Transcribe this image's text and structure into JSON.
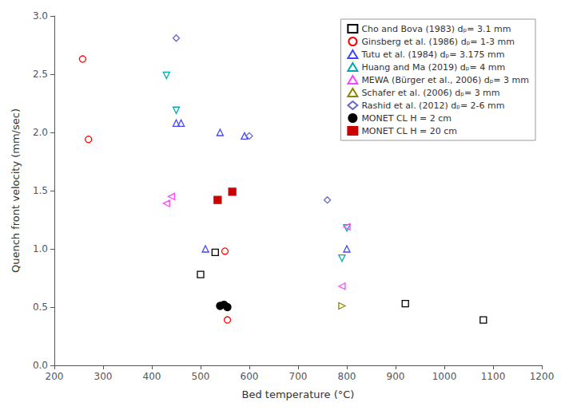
{
  "chart_data": {
    "type": "scatter",
    "title": "",
    "xlabel": "Bed temperature (°C)",
    "ylabel": "Quench front velocity (mm/sec)",
    "xlim": [
      200,
      1200
    ],
    "ylim": [
      0,
      3
    ],
    "xticks": [
      200,
      300,
      400,
      500,
      600,
      700,
      800,
      900,
      1000,
      1100,
      1200
    ],
    "yticks": [
      {
        "value": 0,
        "label": "0.0"
      },
      0.5,
      {
        "value": 1,
        "label": "1.0"
      },
      1.5,
      {
        "value": 2,
        "label": "2.0"
      },
      2.5,
      {
        "value": 3,
        "label": "3.0"
      }
    ],
    "grid": false,
    "legend": "upper right",
    "series": [
      {
        "name": "Cho and Bova (1983) dₚ= 3.1 mm",
        "color": "#000000",
        "marker": "square-open",
        "x": [
          500,
          530,
          920,
          1080
        ],
        "values": [
          0.78,
          0.97,
          0.53,
          0.39
        ]
      },
      {
        "name": "Ginsberg et al. (1986) dₚ= 1-3 mm",
        "color": "#ff0000",
        "marker": "circle-open",
        "x": [
          258,
          270,
          550,
          555
        ],
        "values": [
          2.63,
          1.94,
          0.98,
          0.39
        ]
      },
      {
        "name": "Tutu et al. (1984) dₚ= 3.175 mm",
        "color": "#4444ff",
        "marker": "triangle-up-open",
        "x": [
          450,
          460,
          510,
          540,
          590,
          800
        ],
        "values": [
          2.08,
          2.08,
          1.0,
          2.0,
          1.97,
          1.0
        ]
      },
      {
        "name": "Huang and Ma (2019) dₚ= 4 mm",
        "color": "#00aaaa",
        "marker": "triangle-down-open",
        "x": [
          430,
          450,
          790,
          800
        ],
        "values": [
          2.49,
          2.19,
          0.92,
          1.18
        ]
      },
      {
        "name": "MEWA (Bürger et al., 2006) dₚ= 3 mm",
        "color": "#ff44ff",
        "marker": "triangle-left-open",
        "x": [
          430,
          440,
          790,
          800
        ],
        "values": [
          1.39,
          1.45,
          0.68,
          1.19
        ]
      },
      {
        "name": "Schafer et al. (2006) dₚ= 3 mm",
        "color": "#888800",
        "marker": "triangle-right-open",
        "x": [
          790
        ],
        "values": [
          0.51
        ]
      },
      {
        "name": "Rashid et al. (2012) dₚ= 2-6 mm",
        "color": "#6666cc",
        "marker": "diamond-open",
        "x": [
          450,
          600,
          760
        ],
        "values": [
          2.81,
          1.97,
          1.42
        ]
      },
      {
        "name": "MONET CL H = 2 cm",
        "color": "#000000",
        "marker": "circle-filled",
        "x": [
          540,
          548,
          555
        ],
        "values": [
          0.51,
          0.52,
          0.5
        ]
      },
      {
        "name": "MONET CL H = 20 cm",
        "color": "#cc0000",
        "marker": "square-filled",
        "x": [
          535,
          565
        ],
        "values": [
          1.42,
          1.49
        ]
      }
    ]
  }
}
